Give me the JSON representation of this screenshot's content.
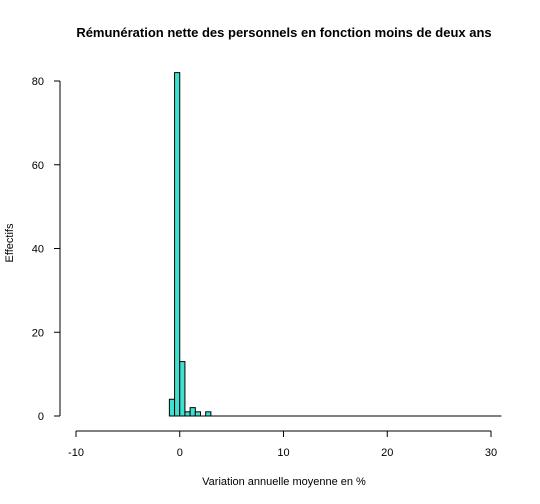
{
  "chart_data": {
    "type": "bar",
    "title": "Rémunération nette des personnels en fonction moins de deux ans",
    "xlabel": "Variation annuelle moyenne en %",
    "ylabel": "Effectifs",
    "xlim": [
      -10,
      31
    ],
    "ylim": [
      0,
      84
    ],
    "x_ticks": [
      -10,
      0,
      10,
      20,
      30
    ],
    "y_ticks": [
      0,
      20,
      40,
      60,
      80
    ],
    "bin_width": 0.5,
    "bins": [
      {
        "start": -1.0,
        "count": 4
      },
      {
        "start": -0.5,
        "count": 82
      },
      {
        "start": 0.0,
        "count": 13
      },
      {
        "start": 0.5,
        "count": 1
      },
      {
        "start": 1.0,
        "count": 2
      },
      {
        "start": 1.5,
        "count": 1
      },
      {
        "start": 2.0,
        "count": 0
      },
      {
        "start": 2.5,
        "count": 1
      },
      {
        "start": 3.0,
        "count": 0
      },
      {
        "start": 30.5,
        "count": 0
      }
    ],
    "bar_color": "#40e0d0",
    "grid": false
  }
}
